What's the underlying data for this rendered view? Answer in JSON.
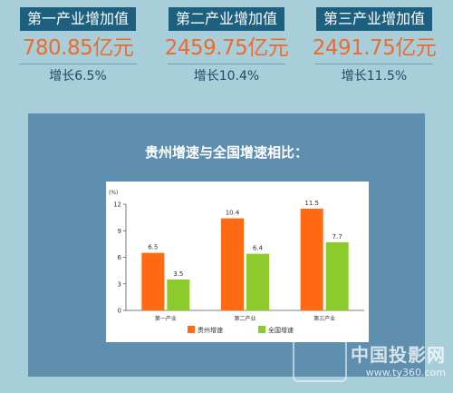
{
  "stats": [
    {
      "title": "第一产业增加值",
      "value": "780.85亿元",
      "growth": "增长6.5%"
    },
    {
      "title": "第二产业增加值",
      "value": "2459.75亿元",
      "growth": "增长10.4%"
    },
    {
      "title": "第三产业增加值",
      "value": "2491.75亿元",
      "growth": "增长11.5%"
    }
  ],
  "panel": {
    "title": "贵州增速与全国增速相比："
  },
  "colors": {
    "guizhou": "#ff6a13",
    "national": "#8dca2b",
    "accent": "#ee6a2d",
    "header_bg": "#1d5f7e"
  },
  "chart_data": {
    "type": "bar",
    "title": "",
    "ylabel": "(%)",
    "xlabel": "",
    "ylim": [
      0,
      12
    ],
    "yticks": [
      0,
      3,
      6,
      9,
      12
    ],
    "categories": [
      "第一产业",
      "第二产业",
      "第三产业"
    ],
    "series": [
      {
        "name": "贵州增速",
        "values": [
          6.5,
          10.4,
          11.5
        ]
      },
      {
        "name": "全国增速",
        "values": [
          3.5,
          6.4,
          7.7
        ]
      }
    ],
    "legend_position": "bottom",
    "grid": false
  },
  "watermark": {
    "text": "中国投影网",
    "url": "www.ty360.com"
  }
}
